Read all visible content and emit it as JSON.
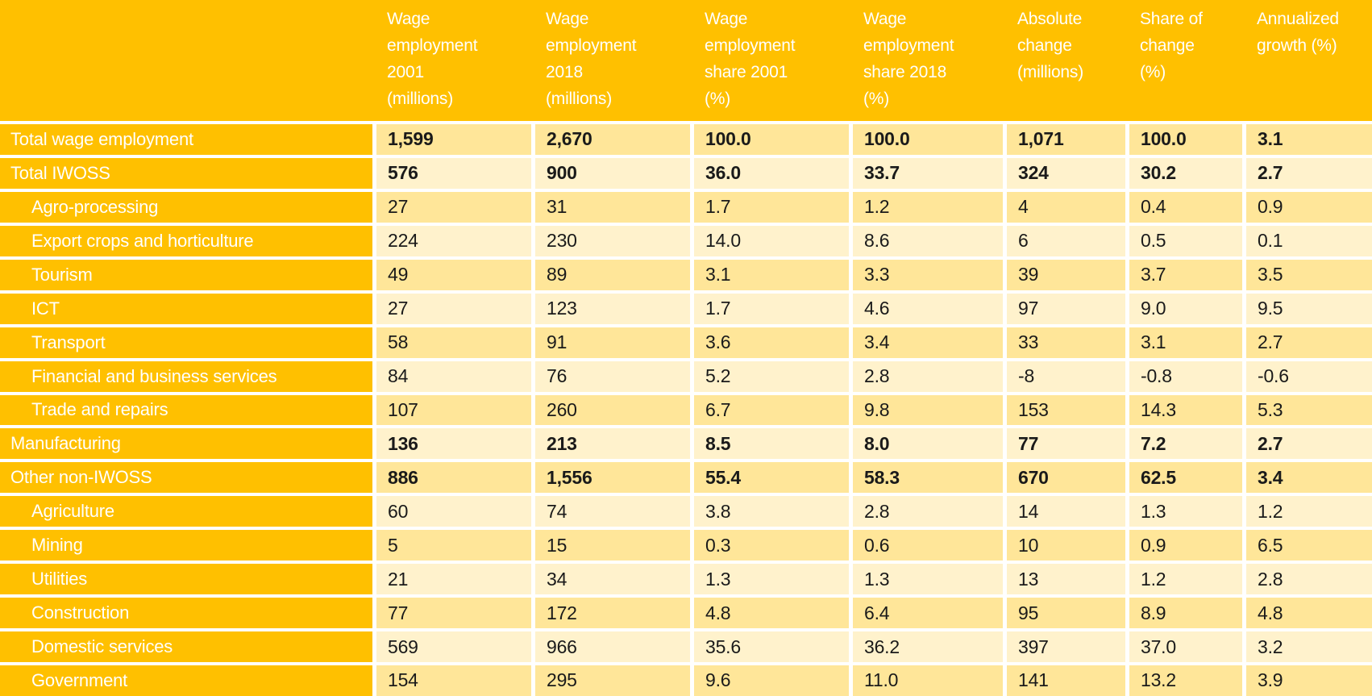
{
  "colors": {
    "header_bg": "#FFC000",
    "label_bg": "#FFC000",
    "row_dark": "#FFE699",
    "row_light": "#FFF2CC",
    "grid_gap": "#FFFFFF",
    "header_text": "#FFFFFF",
    "value_text": "#1A1A1A"
  },
  "chart_data": {
    "type": "table",
    "title": "",
    "columns": [
      "Wage employment 2001 (millions)",
      "Wage employment 2018 (millions)",
      "Wage employment share 2001 (%)",
      "Wage employment share 2018 (%)",
      "Absolute change (millions)",
      "Share of change (%)",
      "Annualized growth (%)"
    ],
    "rows": [
      {
        "label": "Total wage employment",
        "indent": false,
        "bold": true,
        "values": [
          "1,599",
          "2,670",
          "100.0",
          "100.0",
          "1,071",
          "100.0",
          "3.1"
        ]
      },
      {
        "label": "Total IWOSS",
        "indent": false,
        "bold": true,
        "values": [
          "576",
          "900",
          "36.0",
          "33.7",
          "324",
          "30.2",
          "2.7"
        ]
      },
      {
        "label": "Agro-processing",
        "indent": true,
        "bold": false,
        "values": [
          "27",
          "31",
          "1.7",
          "1.2",
          "4",
          "0.4",
          "0.9"
        ]
      },
      {
        "label": "Export crops and horticulture",
        "indent": true,
        "bold": false,
        "values": [
          "224",
          "230",
          "14.0",
          "8.6",
          "6",
          "0.5",
          "0.1"
        ]
      },
      {
        "label": "Tourism",
        "indent": true,
        "bold": false,
        "values": [
          "49",
          "89",
          "3.1",
          "3.3",
          "39",
          "3.7",
          "3.5"
        ]
      },
      {
        "label": "ICT",
        "indent": true,
        "bold": false,
        "values": [
          "27",
          "123",
          "1.7",
          "4.6",
          "97",
          "9.0",
          "9.5"
        ]
      },
      {
        "label": "Transport",
        "indent": true,
        "bold": false,
        "values": [
          "58",
          "91",
          "3.6",
          "3.4",
          "33",
          "3.1",
          "2.7"
        ]
      },
      {
        "label": "Financial and business services",
        "indent": true,
        "bold": false,
        "values": [
          "84",
          "76",
          "5.2",
          "2.8",
          "-8",
          "-0.8",
          "-0.6"
        ]
      },
      {
        "label": "Trade and repairs",
        "indent": true,
        "bold": false,
        "values": [
          "107",
          "260",
          "6.7",
          "9.8",
          "153",
          "14.3",
          "5.3"
        ]
      },
      {
        "label": "Manufacturing",
        "indent": false,
        "bold": true,
        "values": [
          "136",
          "213",
          "8.5",
          "8.0",
          "77",
          "7.2",
          "2.7"
        ]
      },
      {
        "label": "Other non-IWOSS",
        "indent": false,
        "bold": true,
        "values": [
          "886",
          "1,556",
          "55.4",
          "58.3",
          "670",
          "62.5",
          "3.4"
        ]
      },
      {
        "label": "Agriculture",
        "indent": true,
        "bold": false,
        "values": [
          "60",
          "74",
          "3.8",
          "2.8",
          "14",
          "1.3",
          "1.2"
        ]
      },
      {
        "label": "Mining",
        "indent": true,
        "bold": false,
        "values": [
          "5",
          "15",
          "0.3",
          "0.6",
          "10",
          "0.9",
          "6.5"
        ]
      },
      {
        "label": "Utilities",
        "indent": true,
        "bold": false,
        "values": [
          "21",
          "34",
          "1.3",
          "1.3",
          "13",
          "1.2",
          "2.8"
        ]
      },
      {
        "label": "Construction",
        "indent": true,
        "bold": false,
        "values": [
          "77",
          "172",
          "4.8",
          "6.4",
          "95",
          "8.9",
          "4.8"
        ]
      },
      {
        "label": "Domestic services",
        "indent": true,
        "bold": false,
        "values": [
          "569",
          "966",
          "35.6",
          "36.2",
          "397",
          "37.0",
          "3.2"
        ]
      },
      {
        "label": "Government",
        "indent": true,
        "bold": false,
        "values": [
          "154",
          "295",
          "9.6",
          "11.0",
          "141",
          "13.2",
          "3.9"
        ]
      }
    ]
  }
}
